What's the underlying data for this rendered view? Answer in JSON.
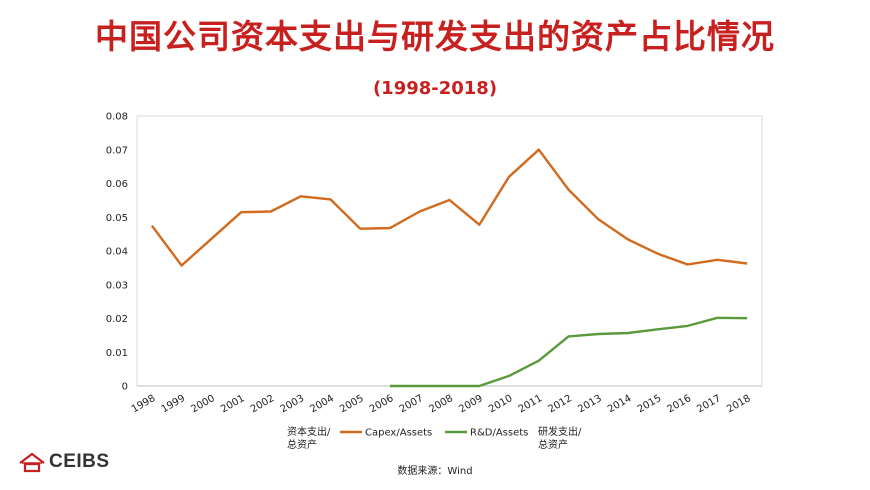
{
  "title": "中国公司资本支出与研发支出的资产占比情况",
  "subtitle": "(1998-2018)",
  "source": "数据来源：Wind",
  "logo_text": "CEIBS",
  "colors": {
    "title": "#c8201e",
    "capex": "#d26a1e",
    "rd": "#5a9a3c"
  },
  "chart_data": {
    "type": "line",
    "x": [
      "1998",
      "1999",
      "2000",
      "2001",
      "2002",
      "2003",
      "2004",
      "2005",
      "2006",
      "2007",
      "2008",
      "2009",
      "2010",
      "2011",
      "2012",
      "2013",
      "2014",
      "2015",
      "2016",
      "2017",
      "2018"
    ],
    "ylim": [
      0,
      0.08
    ],
    "yticks": [
      "0",
      "0.01",
      "0.02",
      "0.03",
      "0.04",
      "0.05",
      "0.06",
      "0.07",
      "0.08"
    ],
    "grid": false,
    "series": [
      {
        "name": "Capex/Assets",
        "label_cn": "资本支出/总资产",
        "color": "#d26a1e",
        "values": [
          0.0475,
          0.0357,
          0.0436,
          0.0515,
          0.0517,
          0.0562,
          0.0553,
          0.0466,
          0.0468,
          0.0517,
          0.0551,
          0.0478,
          0.062,
          0.07,
          0.0582,
          0.0494,
          0.0434,
          0.0392,
          0.036,
          0.0374,
          0.0363
        ]
      },
      {
        "name": "R&D/Assets",
        "label_cn": "研发支出/总资产",
        "color": "#5a9a3c",
        "values": [
          null,
          null,
          null,
          null,
          null,
          null,
          null,
          null,
          0.0,
          0.0,
          0.0,
          0.0,
          0.003,
          0.0075,
          0.0147,
          0.0154,
          0.0157,
          0.0168,
          0.0178,
          0.0202,
          0.0201
        ]
      }
    ],
    "legend_position": "bottom"
  }
}
